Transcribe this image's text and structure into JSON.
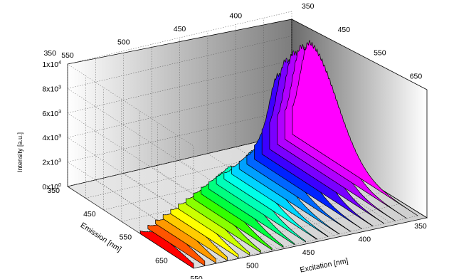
{
  "chart_data": {
    "type": "waterfall-3d",
    "title": "",
    "ylabel": "Intensity [a.u.]",
    "emission_label": "Emission [nm]",
    "excitation_label": "Excitation [nm]",
    "ylim": [
      0,
      10000
    ],
    "y_ticks": [
      {
        "base": "0x10",
        "exp": "0",
        "value": 0
      },
      {
        "base": "2x10",
        "exp": "3",
        "value": 2000
      },
      {
        "base": "4x10",
        "exp": "3",
        "value": 4000
      },
      {
        "base": "6x10",
        "exp": "3",
        "value": 6000
      },
      {
        "base": "8x10",
        "exp": "3",
        "value": 8000
      },
      {
        "base": "1x10",
        "exp": "4",
        "value": 10000
      }
    ],
    "emission_range": [
      350,
      700
    ],
    "excitation_range": [
      350,
      550
    ],
    "emission_ticks": [
      350,
      450,
      550,
      650
    ],
    "excitation_ticks": [
      350,
      400,
      450,
      500,
      550
    ],
    "top_emission_ticks": [
      350,
      450,
      550,
      650
    ],
    "top_excitation_ticks": [
      400,
      450,
      500,
      550
    ],
    "grid": true,
    "series_excitation": [
      350,
      360,
      370,
      380,
      390,
      400,
      410,
      420,
      430,
      440,
      450,
      460,
      470,
      480,
      490,
      500,
      510,
      520,
      530,
      540,
      550
    ],
    "series_peak_emission": [
      400,
      410,
      420,
      430,
      440,
      450,
      460,
      470,
      480,
      490,
      500,
      510,
      520,
      530,
      540,
      550,
      560,
      570,
      580,
      590,
      600
    ],
    "series_peak_intensity": [
      8400,
      8500,
      8400,
      8200,
      7400,
      4200,
      2600,
      2400,
      2100,
      1900,
      2300,
      2200,
      2000,
      1800,
      1600,
      1500,
      1400,
      1300,
      1200,
      1100,
      900
    ],
    "series_colors": [
      "#ff00ff",
      "#e000ff",
      "#b000ff",
      "#7a00ff",
      "#3c00ff",
      "#0022ff",
      "#0066ff",
      "#00a0ff",
      "#00d4ff",
      "#00ffe8",
      "#00ffb8",
      "#00ff80",
      "#00ff40",
      "#33ff00",
      "#88ff00",
      "#ccff00",
      "#ffff00",
      "#ffcc00",
      "#ff9900",
      "#ff5500",
      "#ff0000"
    ]
  }
}
